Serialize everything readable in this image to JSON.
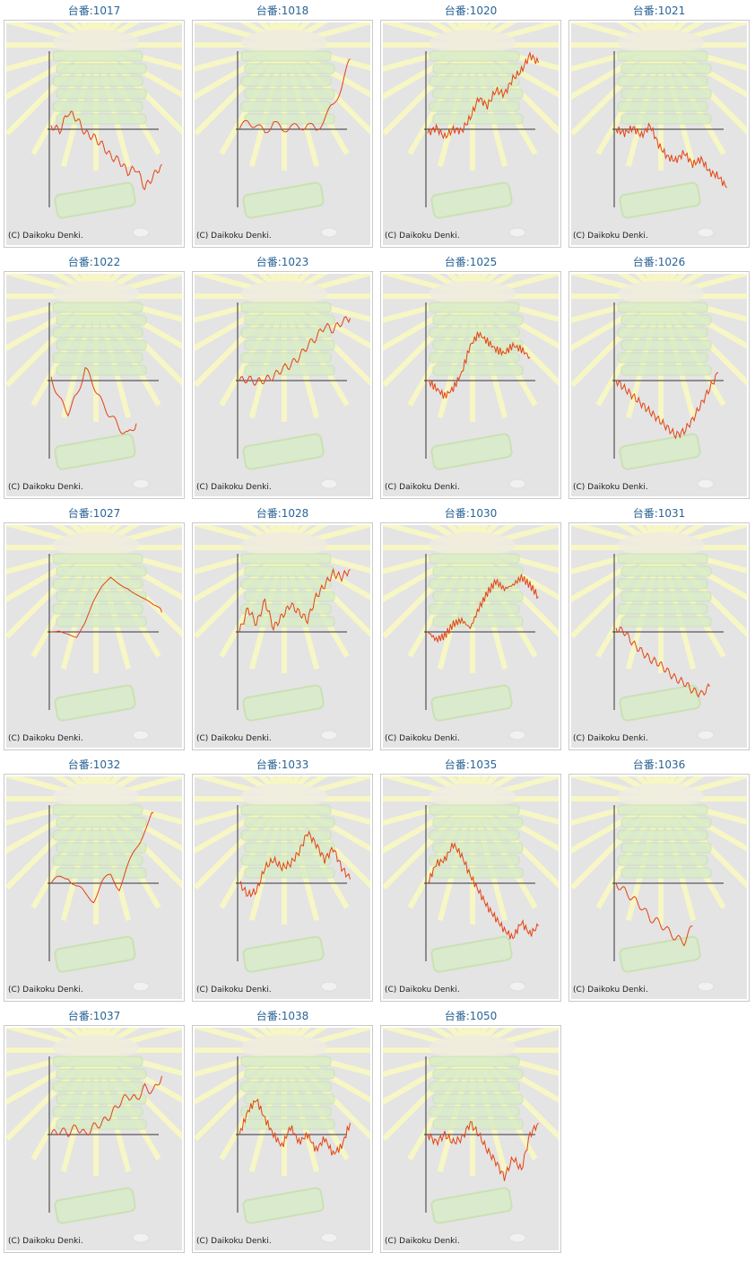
{
  "title_prefix": "台番:",
  "copyright": "(C) Daikoku Denki.",
  "colors": {
    "title": "#2a6496",
    "line": "#e5420f",
    "axis": "#333333",
    "panel_bg": "#e4e4e4",
    "rays": "#f7f6c5",
    "machine": "#d9ecc8"
  },
  "machines": [
    {
      "id": "1017",
      "label": "台番:1017",
      "trend": [
        0.05,
        -0.02,
        0.22,
        0.14,
        -0.05,
        -0.1,
        -0.2,
        -0.35,
        -0.4,
        -0.55,
        -0.5,
        -0.75,
        -0.6,
        -0.45
      ]
    },
    {
      "id": "1018",
      "label": "台番:1018",
      "trend": [
        0.0,
        0.1,
        0.05,
        -0.05,
        0.1,
        -0.02,
        0.05,
        0.0,
        0.08,
        -0.03,
        0.15,
        0.3,
        0.55,
        0.9
      ]
    },
    {
      "id": "1020",
      "label": "台番:1020",
      "trend": [
        -0.05,
        0.02,
        -0.1,
        0.0,
        -0.02,
        0.15,
        0.4,
        0.3,
        0.5,
        0.45,
        0.65,
        0.75,
        0.95,
        0.85
      ]
    },
    {
      "id": "1021",
      "label": "台番:1021",
      "trend": [
        0.0,
        -0.05,
        0.02,
        -0.08,
        0.05,
        -0.2,
        -0.35,
        -0.4,
        -0.3,
        -0.45,
        -0.38,
        -0.55,
        -0.6,
        -0.75
      ]
    },
    {
      "id": "1022",
      "label": "台番:1022",
      "trend": [
        0.05,
        -0.25,
        -0.4,
        -0.2,
        0.15,
        -0.05,
        -0.3,
        -0.45,
        -0.6,
        -0.7,
        -0.55
      ]
    },
    {
      "id": "1023",
      "label": "台番:1023",
      "trend": [
        0.0,
        0.02,
        -0.02,
        0.01,
        0.05,
        0.15,
        0.2,
        0.3,
        0.45,
        0.55,
        0.7,
        0.65,
        0.75,
        0.8
      ]
    },
    {
      "id": "1025",
      "label": "台番:1025",
      "trend": [
        0.0,
        -0.1,
        -0.2,
        -0.1,
        0.1,
        0.45,
        0.6,
        0.5,
        0.4,
        0.35,
        0.45,
        0.4,
        0.3
      ]
    },
    {
      "id": "1026",
      "label": "台番:1026",
      "trend": [
        0.0,
        -0.1,
        -0.2,
        -0.3,
        -0.4,
        -0.5,
        -0.6,
        -0.7,
        -0.65,
        -0.5,
        -0.3,
        -0.1,
        0.1
      ]
    },
    {
      "id": "1027",
      "label": "台番:1027",
      "trend": [
        0.0,
        0.05,
        0.02,
        -0.05,
        0.1,
        0.35,
        0.55,
        0.7,
        0.65,
        0.6,
        0.5,
        0.4,
        0.3,
        0.25
      ]
    },
    {
      "id": "1028",
      "label": "台番:1028",
      "trend": [
        0.0,
        0.3,
        0.1,
        0.4,
        0.05,
        0.2,
        0.35,
        0.25,
        0.15,
        0.45,
        0.6,
        0.75,
        0.7,
        0.8
      ]
    },
    {
      "id": "1030",
      "label": "台番:1030",
      "trend": [
        0.0,
        -0.1,
        -0.05,
        0.1,
        0.15,
        0.05,
        0.3,
        0.5,
        0.65,
        0.55,
        0.6,
        0.7,
        0.6,
        0.45
      ]
    },
    {
      "id": "1031",
      "label": "台番:1031",
      "trend": [
        0.05,
        0.0,
        -0.15,
        -0.25,
        -0.35,
        -0.4,
        -0.5,
        -0.6,
        -0.65,
        -0.75,
        -0.8,
        -0.7
      ]
    },
    {
      "id": "1032",
      "label": "台番:1032",
      "trend": [
        0.0,
        0.05,
        0.1,
        -0.05,
        -0.15,
        -0.2,
        0.0,
        0.1,
        -0.05,
        0.2,
        0.45,
        0.7,
        0.9
      ]
    },
    {
      "id": "1033",
      "label": "台番:1033",
      "trend": [
        0.0,
        -0.15,
        -0.1,
        0.2,
        0.3,
        0.2,
        0.25,
        0.4,
        0.65,
        0.5,
        0.3,
        0.45,
        0.2,
        0.05
      ]
    },
    {
      "id": "1035",
      "label": "台番:1035",
      "trend": [
        0.0,
        0.25,
        0.3,
        0.5,
        0.35,
        0.1,
        -0.1,
        -0.3,
        -0.45,
        -0.6,
        -0.7,
        -0.5,
        -0.65,
        -0.55
      ]
    },
    {
      "id": "1036",
      "label": "台番:1036",
      "trend": [
        0.0,
        -0.1,
        -0.2,
        -0.3,
        -0.45,
        -0.5,
        -0.6,
        -0.7,
        -0.75,
        -0.55
      ]
    },
    {
      "id": "1037",
      "label": "台番:1037",
      "trend": [
        0.0,
        0.05,
        0.02,
        0.1,
        0.0,
        0.1,
        0.15,
        0.25,
        0.4,
        0.5,
        0.45,
        0.6,
        0.55,
        0.75
      ]
    },
    {
      "id": "1038",
      "label": "台番:1038",
      "trend": [
        0.0,
        0.3,
        0.45,
        0.2,
        0.0,
        -0.15,
        0.1,
        -0.1,
        0.0,
        -0.2,
        -0.05,
        -0.25,
        -0.15,
        0.15
      ]
    },
    {
      "id": "1050",
      "label": "台番:1050",
      "trend": [
        0.0,
        -0.1,
        0.0,
        -0.1,
        -0.05,
        0.15,
        0.0,
        -0.2,
        -0.35,
        -0.55,
        -0.3,
        -0.45,
        0.0,
        0.15
      ]
    }
  ]
}
